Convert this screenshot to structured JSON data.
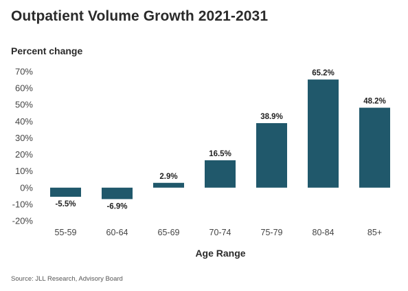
{
  "chart_data": {
    "type": "bar",
    "title": "Outpatient Volume Growth 2021-2031",
    "ylabel": "Percent change",
    "xlabel": "Age Range",
    "categories": [
      "55-59",
      "60-64",
      "65-69",
      "70-74",
      "75-79",
      "80-84",
      "85+"
    ],
    "values": [
      -5.5,
      -6.9,
      2.9,
      16.5,
      38.9,
      65.2,
      48.2
    ],
    "data_labels": [
      "-5.5%",
      "-6.9%",
      "2.9%",
      "16.5%",
      "38.9%",
      "65.2%",
      "48.2%"
    ],
    "ylim": [
      -20,
      70
    ],
    "yticks": [
      70,
      60,
      50,
      40,
      30,
      20,
      10,
      0,
      -10,
      -20
    ],
    "ytick_labels": [
      "70%",
      "60%",
      "50%",
      "40%",
      "30%",
      "20%",
      "10%",
      "0%",
      "-10%",
      "-20%"
    ],
    "bar_color": "#20586b",
    "grid": false,
    "source": "Source: JLL Research, Advisory Board"
  }
}
